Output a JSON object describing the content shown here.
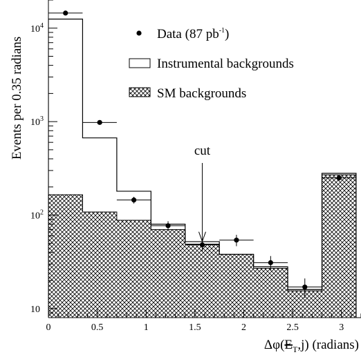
{
  "chart_data": {
    "type": "bar",
    "subtype": "stacked-step-histogram",
    "title": "",
    "xlabel": "Δφ(E̸T,j) (radians)",
    "xlabel_parts": {
      "prefix": "Δφ(",
      "met": "E",
      "met_sub": "T",
      "suffix": ",j) (radians)"
    },
    "ylabel": "Events per 0.35 radians",
    "xlim": [
      0,
      3.2
    ],
    "ylim": [
      8,
      20000
    ],
    "yscale": "log",
    "x_ticks": [
      {
        "value": 0,
        "label": "0"
      },
      {
        "value": 0.5,
        "label": "0.5"
      },
      {
        "value": 1,
        "label": "1"
      },
      {
        "value": 1.5,
        "label": "1.5"
      },
      {
        "value": 2,
        "label": "2"
      },
      {
        "value": 2.5,
        "label": "2.5"
      },
      {
        "value": 3,
        "label": "3"
      }
    ],
    "y_ticks": [
      {
        "value": 10,
        "base": "10",
        "exp": ""
      },
      {
        "value": 100,
        "base": "10",
        "exp": "2"
      },
      {
        "value": 1000,
        "base": "10",
        "exp": "3"
      },
      {
        "value": 10000,
        "base": "10",
        "exp": "4"
      }
    ],
    "bin_edges": [
      0,
      0.35,
      0.7,
      1.05,
      1.4,
      1.75,
      2.1,
      2.45,
      2.8,
      3.15
    ],
    "series": [
      {
        "name": "Data (87 pb-1)",
        "style": "points-with-errors",
        "x": [
          0.175,
          0.525,
          0.875,
          1.225,
          1.575,
          1.925,
          2.275,
          2.625,
          2.975
        ],
        "values": [
          14500,
          980,
          145,
          77,
          48,
          54,
          31,
          17,
          250
        ],
        "errors": [
          120,
          31,
          12,
          9,
          7,
          7.5,
          5.5,
          4,
          16
        ]
      },
      {
        "name": "Instrumental backgrounds",
        "style": "open-step",
        "values": [
          12500,
          670,
          180,
          80,
          52,
          38,
          28,
          16,
          280
        ]
      },
      {
        "name": "SM backgrounds",
        "style": "crosshatch-filled-step",
        "values": [
          165,
          108,
          88,
          70,
          49,
          38,
          27,
          15.5,
          270
        ]
      }
    ],
    "annotations": [
      {
        "text": "cut",
        "x": 1.575,
        "arrow_to_y": 48
      }
    ],
    "legend": {
      "placement": "top-right",
      "entries": [
        {
          "marker": "dot",
          "label_prefix": "Data (87 pb",
          "label_sup": "-1",
          "label_suffix": ")"
        },
        {
          "marker": "open-box",
          "label": "Instrumental backgrounds"
        },
        {
          "marker": "hatched-box",
          "label": "SM backgrounds"
        }
      ]
    },
    "grid": false
  }
}
